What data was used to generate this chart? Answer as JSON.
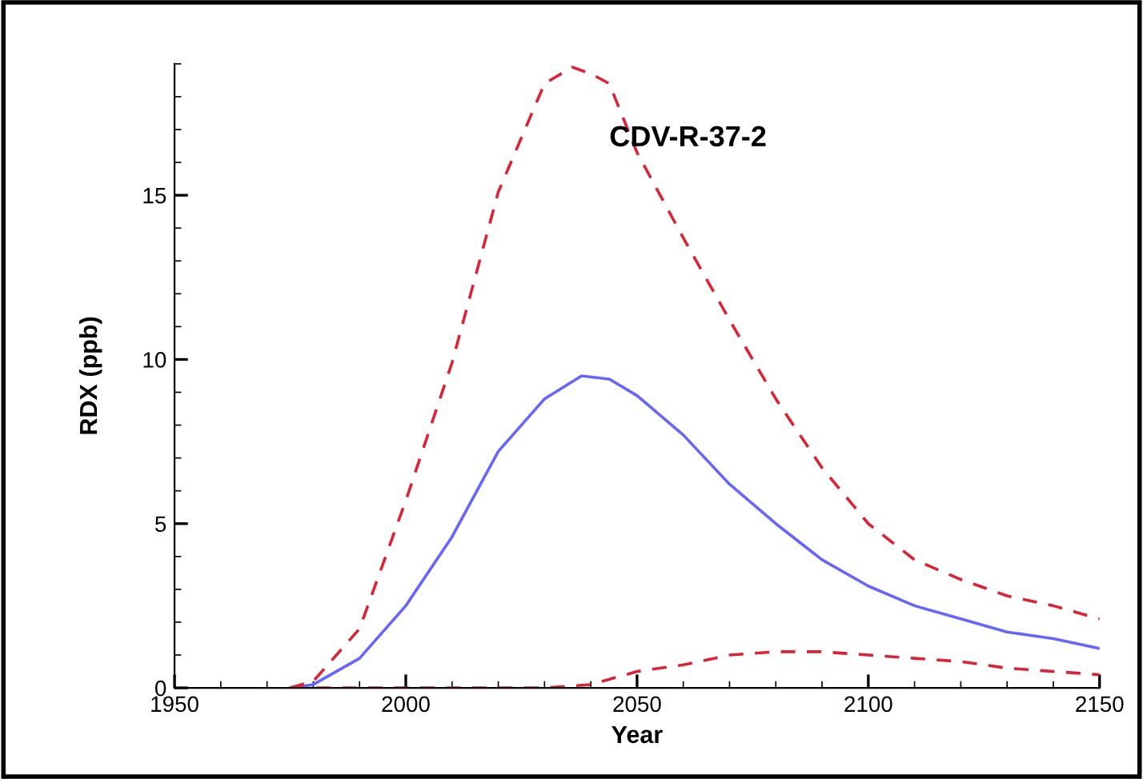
{
  "chart_data": {
    "type": "line",
    "title": "CDV-R-37-2",
    "xlabel": "Year",
    "ylabel": "RDX (ppb)",
    "xlim": [
      1950,
      2150
    ],
    "xticks": [
      1950,
      2000,
      2050,
      2100,
      2150
    ],
    "ylim": [
      0,
      19
    ],
    "yticks": [
      0,
      5,
      10,
      15
    ],
    "grid": false,
    "series": [
      {
        "color": "#6666ff",
        "line_style": "solid",
        "x": [
          1975,
          1980,
          1990,
          2000,
          2010,
          2020,
          2030,
          2038,
          2044,
          2050,
          2060,
          2070,
          2080,
          2090,
          2100,
          2110,
          2120,
          2130,
          2140,
          2150
        ],
        "values": [
          0,
          0.1,
          0.9,
          2.5,
          4.6,
          7.2,
          8.8,
          9.5,
          9.4,
          8.9,
          7.7,
          6.2,
          5.0,
          3.9,
          3.1,
          2.5,
          2.1,
          1.7,
          1.5,
          1.2
        ]
      },
      {
        "color": "#dd2233",
        "line_style": "dashed",
        "x": [
          1975,
          1980,
          1990,
          2000,
          2010,
          2020,
          2030,
          2036,
          2040,
          2044,
          2050,
          2060,
          2070,
          2080,
          2090,
          2100,
          2110,
          2120,
          2130,
          2140,
          2150
        ],
        "values": [
          0,
          0.2,
          1.8,
          5.7,
          9.9,
          15.1,
          18.4,
          18.9,
          18.7,
          18.4,
          16.3,
          13.7,
          11.2,
          8.8,
          6.7,
          5.0,
          3.9,
          3.3,
          2.8,
          2.5,
          2.1
        ]
      },
      {
        "color": "#dd2233",
        "line_style": "dashed",
        "x": [
          1975,
          2000,
          2030,
          2040,
          2050,
          2060,
          2070,
          2080,
          2090,
          2100,
          2110,
          2120,
          2130,
          2140,
          2150
        ],
        "values": [
          0,
          0,
          0,
          0.1,
          0.5,
          0.7,
          1.0,
          1.1,
          1.1,
          1.0,
          0.9,
          0.8,
          0.6,
          0.5,
          0.4
        ]
      }
    ]
  }
}
